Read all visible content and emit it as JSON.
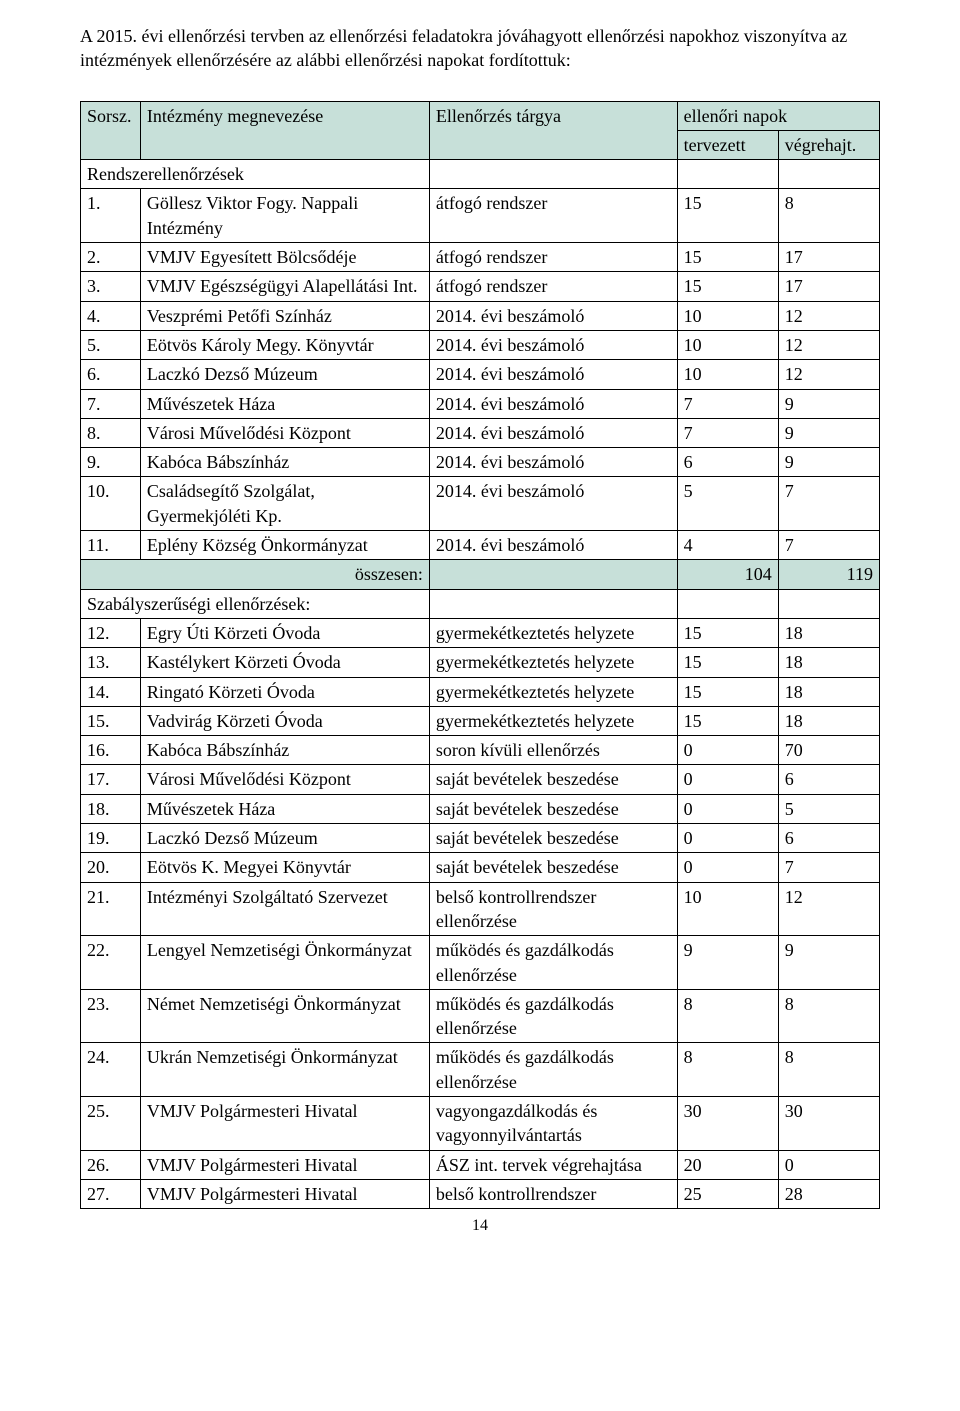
{
  "intro": "A 2015. évi ellenőrzési tervben az ellenőrzési feladatokra jóváhagyott ellenőrzési napokhoz viszonyítva az intézmények ellenőrzésére az alábbi ellenőrzési napokat fordítottuk:",
  "header_bg": "#c7e0d9",
  "columns": {
    "sorsz": "Sorsz.",
    "name": "Intézmény megnevezése",
    "subject": "Ellenőrzés tárgya",
    "group": "ellenőri napok",
    "planned": "tervezett",
    "actual": "végrehajt."
  },
  "section_1_title": "Rendszerellenőrzések",
  "rows1": [
    {
      "n": "1.",
      "name": "Göllesz Viktor Fogy. Nappali Intézmény",
      "subj": "átfogó rendszer",
      "p": "15",
      "a": "8"
    },
    {
      "n": "2.",
      "name": "VMJV Egyesített Bölcsődéje",
      "subj": "átfogó rendszer",
      "p": "15",
      "a": "17"
    },
    {
      "n": "3.",
      "name": "VMJV Egészségügyi Alapellátási Int.",
      "subj": "átfogó rendszer",
      "p": "15",
      "a": "17"
    },
    {
      "n": "4.",
      "name": "Veszprémi Petőfi Színház",
      "subj": "2014. évi beszámoló",
      "p": "10",
      "a": "12"
    },
    {
      "n": "5.",
      "name": "Eötvös Károly Megy. Könyvtár",
      "subj": "2014. évi beszámoló",
      "p": "10",
      "a": "12"
    },
    {
      "n": "6.",
      "name": "Laczkó Dezső Múzeum",
      "subj": "2014. évi beszámoló",
      "p": "10",
      "a": "12"
    },
    {
      "n": "7.",
      "name": "Művészetek Háza",
      "subj": "2014. évi beszámoló",
      "p": "7",
      "a": "9"
    },
    {
      "n": "8.",
      "name": "Városi Művelődési Központ",
      "subj": "2014. évi beszámoló",
      "p": "7",
      "a": "9"
    },
    {
      "n": "9.",
      "name": "Kabóca Bábszínház",
      "subj": "2014. évi beszámoló",
      "p": "6",
      "a": "9"
    },
    {
      "n": "10.",
      "name": "Családsegítő Szolgálat, Gyermekjóléti Kp.",
      "subj": "2014. évi beszámoló",
      "p": "5",
      "a": "7"
    },
    {
      "n": "11.",
      "name": "Eplény Község Önkormányzat",
      "subj": "2014. évi beszámoló",
      "p": "4",
      "a": "7"
    }
  ],
  "total_label": "összesen:",
  "total_planned": "104",
  "total_actual": "119",
  "section_2_title": "Szabályszerűségi ellenőrzések:",
  "rows2": [
    {
      "n": "12.",
      "name": "Egry Úti Körzeti Óvoda",
      "subj": "gyermekétkeztetés helyzete",
      "p": "15",
      "a": "18"
    },
    {
      "n": "13.",
      "name": "Kastélykert Körzeti Óvoda",
      "subj": "gyermekétkeztetés helyzete",
      "p": "15",
      "a": "18"
    },
    {
      "n": "14.",
      "name": "Ringató Körzeti Óvoda",
      "subj": "gyermekétkeztetés helyzete",
      "p": "15",
      "a": "18"
    },
    {
      "n": "15.",
      "name": "Vadvirág Körzeti Óvoda",
      "subj": "gyermekétkeztetés helyzete",
      "p": "15",
      "a": "18"
    },
    {
      "n": "16.",
      "name": "Kabóca Bábszínház",
      "subj": "soron kívüli ellenőrzés",
      "p": "0",
      "a": "70"
    },
    {
      "n": "17.",
      "name": "Városi Művelődési Központ",
      "subj": "saját bevételek beszedése",
      "p": "0",
      "a": "6"
    },
    {
      "n": "18.",
      "name": "Művészetek Háza",
      "subj": "saját bevételek beszedése",
      "p": "0",
      "a": "5"
    },
    {
      "n": "19.",
      "name": "Laczkó Dezső Múzeum",
      "subj": "saját bevételek beszedése",
      "p": "0",
      "a": "6"
    },
    {
      "n": "20.",
      "name": "Eötvös K. Megyei Könyvtár",
      "subj": "saját bevételek beszedése",
      "p": "0",
      "a": "7"
    },
    {
      "n": "21.",
      "name": "Intézményi Szolgáltató Szervezet",
      "subj": "belső kontrollrendszer ellenőrzése",
      "p": "10",
      "a": "12"
    },
    {
      "n": "22.",
      "name": "Lengyel Nemzetiségi Önkormányzat",
      "subj": "működés és gazdálkodás ellenőrzése",
      "p": "9",
      "a": "9"
    },
    {
      "n": "23.",
      "name": "Német Nemzetiségi Önkormányzat",
      "subj": "működés és gazdálkodás ellenőrzése",
      "p": "8",
      "a": "8"
    },
    {
      "n": "24.",
      "name": "Ukrán Nemzetiségi Önkormányzat",
      "subj": "működés és gazdálkodás ellenőrzése",
      "p": "8",
      "a": "8"
    },
    {
      "n": "25.",
      "name": "VMJV Polgármesteri Hivatal",
      "subj": "vagyongazdálkodás és vagyonnyilvántartás",
      "p": "30",
      "a": "30"
    },
    {
      "n": "26.",
      "name": "VMJV Polgármesteri Hivatal",
      "subj": "ÁSZ int. tervek végrehajtása",
      "p": "20",
      "a": "0"
    },
    {
      "n": "27.",
      "name": "VMJV Polgármesteri Hivatal",
      "subj": "belső kontrollrendszer",
      "p": "25",
      "a": "28"
    }
  ],
  "page_number": "14"
}
